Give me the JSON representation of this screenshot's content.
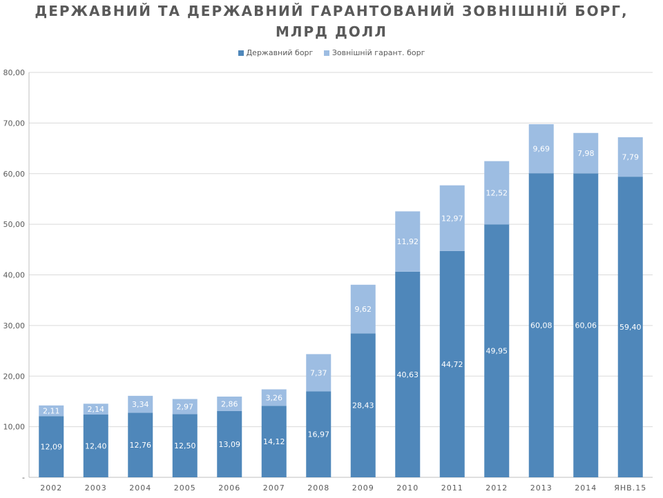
{
  "chart_data": {
    "type": "bar",
    "stacked": true,
    "title_line1": "ДЕРЖАВНИЙ ТА ДЕРЖАВНИЙ ГАРАНТОВАНИЙ ЗОВНІШНІЙ БОРГ,",
    "title_line2": "МЛРД ДОЛЛ",
    "categories": [
      "2002",
      "2003",
      "2004",
      "2005",
      "2006",
      "2007",
      "2008",
      "2009",
      "2010",
      "2011",
      "2012",
      "2013",
      "2014",
      "ЯНВ.15"
    ],
    "series": [
      {
        "name": "Державний борг",
        "color": "#4f87ba",
        "values": [
          12.09,
          12.4,
          12.76,
          12.5,
          13.09,
          14.12,
          16.97,
          28.43,
          40.63,
          44.72,
          49.95,
          60.08,
          60.06,
          59.4
        ],
        "labels": [
          "12,09",
          "12,40",
          "12,76",
          "12,50",
          "13,09",
          "14,12",
          "16,97",
          "28,43",
          "40,63",
          "44,72",
          "49,95",
          "60,08",
          "60,06",
          "59,40"
        ]
      },
      {
        "name": "Зовнішній гарант. борг",
        "color": "#9dbde2",
        "values": [
          2.11,
          2.14,
          3.34,
          2.97,
          2.86,
          3.26,
          7.37,
          9.62,
          11.92,
          12.97,
          12.52,
          9.69,
          7.98,
          7.79
        ],
        "labels": [
          "2,11",
          "2,14",
          "3,34",
          "2,97",
          "2,86",
          "3,26",
          "7,37",
          "9,62",
          "11,92",
          "12,97",
          "12,52",
          "9,69",
          "7,98",
          "7,79"
        ]
      }
    ],
    "ylim": [
      0,
      80
    ],
    "yticks": [
      "-",
      "10,00",
      "20,00",
      "30,00",
      "40,00",
      "50,00",
      "60,00",
      "70,00",
      "80,00"
    ],
    "grid": true,
    "legend_position": "top"
  }
}
